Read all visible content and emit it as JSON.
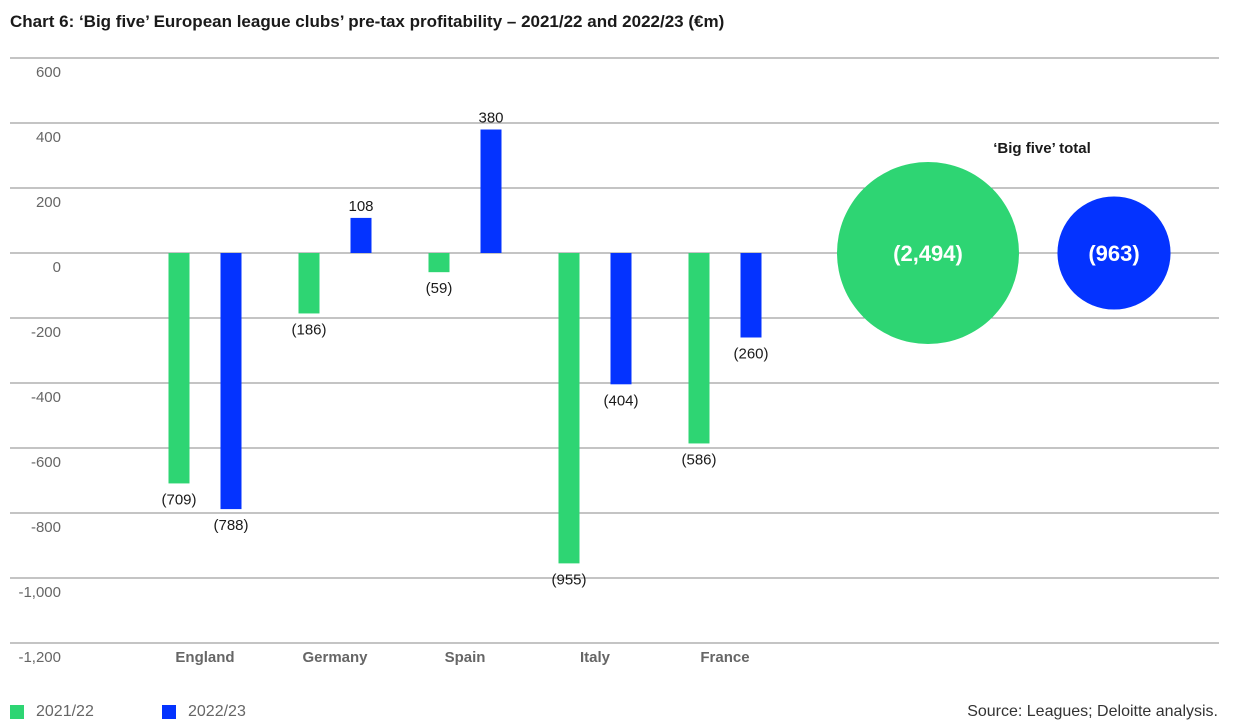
{
  "chart_data": {
    "type": "bar",
    "title": "Chart 6: ‘Big five’ European league clubs’ pre-tax profitability – 2021/22 and 2022/23 (€m)",
    "xlabel": "",
    "ylabel": "",
    "ylim": [
      -1200,
      600
    ],
    "yticks": [
      600,
      400,
      200,
      0,
      -200,
      -400,
      -600,
      -800,
      -1000,
      -1200
    ],
    "ytick_labels": [
      "600",
      "400",
      "200",
      "0",
      "-200",
      "-400",
      "-600",
      "-800",
      "-1,000",
      "-1,200"
    ],
    "grid": true,
    "categories": [
      "England",
      "Germany",
      "Spain",
      "Italy",
      "France"
    ],
    "series": [
      {
        "name": "2021/22",
        "color": "#2ed573",
        "values": [
          -709,
          -186,
          -59,
          -955,
          -586
        ],
        "labels": [
          "(709)",
          "(186)",
          "(59)",
          "(955)",
          "(586)"
        ]
      },
      {
        "name": "2022/23",
        "color": "#0433ff",
        "values": [
          -788,
          108,
          380,
          -404,
          -260
        ],
        "labels": [
          "(788)",
          "108",
          "380",
          "(404)",
          "(260)"
        ]
      }
    ],
    "totals": {
      "title": "‘Big five’ total",
      "items": [
        {
          "series": "2021/22",
          "value": -2494,
          "label": "(2,494)",
          "color": "#2ed573"
        },
        {
          "series": "2022/23",
          "value": -963,
          "label": "(963)",
          "color": "#0433ff"
        }
      ]
    },
    "legend": {
      "placement": "bottom-left",
      "entries": [
        "2021/22",
        "2022/23"
      ]
    },
    "source": "Source: Leagues; Deloitte analysis."
  }
}
